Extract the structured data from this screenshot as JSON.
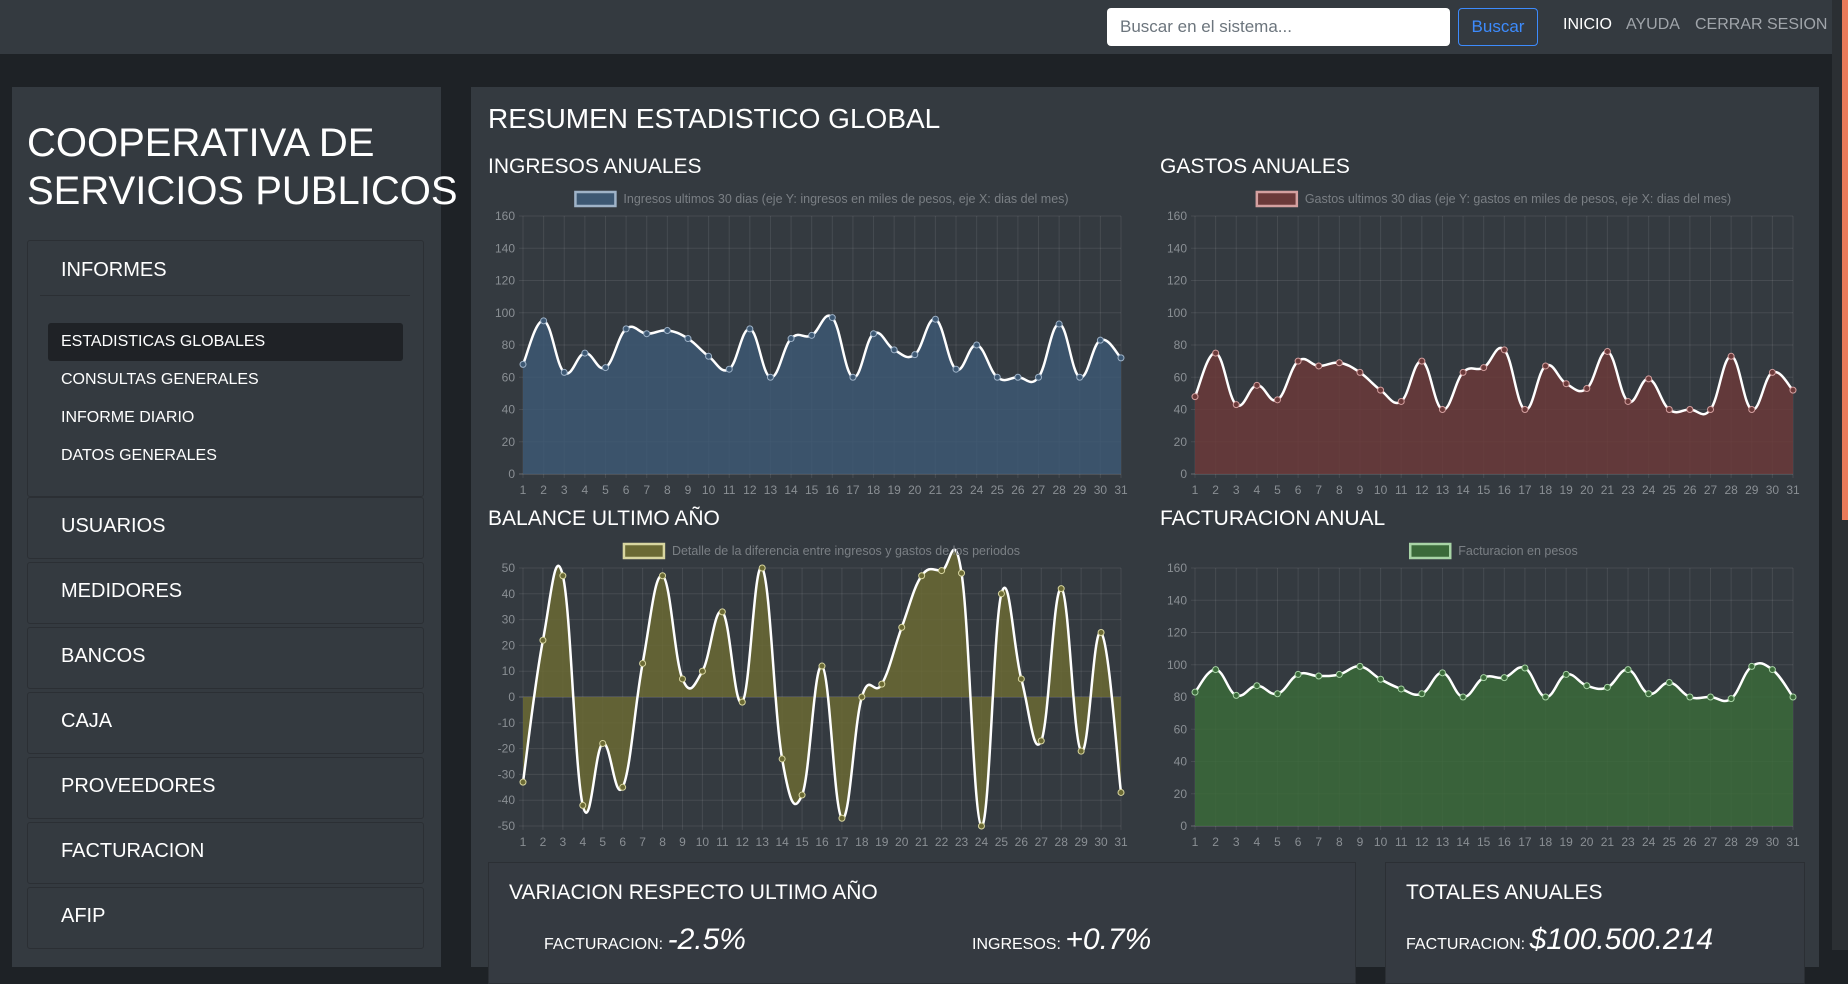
{
  "nav": {
    "search_placeholder": "Buscar en el sistema...",
    "search_button": "Buscar",
    "links": [
      "INICIO",
      "AYUDA",
      "CERRAR SESION"
    ]
  },
  "sidebar": {
    "title_lines": [
      "COOPERATIVA DE",
      "SERVICIOS PUBLICOS"
    ],
    "sections": [
      {
        "label": "INFORMES",
        "items": [
          "ESTADISTICAS GLOBALES",
          "CONSULTAS GENERALES",
          "INFORME DIARIO",
          "DATOS GENERALES"
        ]
      },
      {
        "label": "USUARIOS"
      },
      {
        "label": "MEDIDORES"
      },
      {
        "label": "BANCOS"
      },
      {
        "label": "CAJA"
      },
      {
        "label": "PROVEEDORES"
      },
      {
        "label": "FACTURACION"
      },
      {
        "label": "AFIP"
      }
    ]
  },
  "main": {
    "title": "RESUMEN ESTADISTICO GLOBAL",
    "variation": {
      "title": "VARIACION RESPECTO ULTIMO AÑO",
      "items": [
        {
          "label": "FACTURACION:",
          "value": "-2.5%"
        },
        {
          "label": "INGRESOS:",
          "value": "+0.7%"
        }
      ]
    },
    "totals": {
      "title": "TOTALES ANUALES",
      "items": [
        {
          "label": "FACTURACION:",
          "value": "$100.500.214"
        }
      ]
    }
  },
  "chart_data": [
    {
      "type": "line",
      "title": "INGRESOS ANUALES",
      "categories": [
        "1",
        "2",
        "3",
        "4",
        "5",
        "6",
        "7",
        "8",
        "9",
        "10",
        "11",
        "12",
        "13",
        "14",
        "15",
        "16",
        "17",
        "18",
        "19",
        "20",
        "21",
        "23",
        "24",
        "25",
        "26",
        "27",
        "28",
        "29",
        "30",
        "31"
      ],
      "series": [
        {
          "name": "Ingresos ultimos 30 dias (eje Y: ingresos en miles de pesos, eje X: dias del mes)",
          "color": "#3d5873",
          "border_color": "#9fb3c8",
          "values": [
            68,
            95,
            63,
            75,
            66,
            90,
            87,
            89,
            84,
            73,
            65,
            90,
            60,
            84,
            86,
            97,
            60,
            87,
            77,
            74,
            96,
            65,
            80,
            60,
            60,
            60,
            93,
            60,
            83,
            72
          ]
        }
      ],
      "ylim": [
        0,
        160
      ],
      "yticks": [
        0,
        20,
        40,
        60,
        80,
        100,
        120,
        140,
        160
      ],
      "grid": true
    },
    {
      "type": "line",
      "title": "GASTOS ANUALES",
      "categories": [
        "1",
        "2",
        "3",
        "4",
        "5",
        "6",
        "7",
        "8",
        "9",
        "10",
        "11",
        "12",
        "13",
        "14",
        "15",
        "16",
        "17",
        "18",
        "19",
        "20",
        "21",
        "23",
        "24",
        "25",
        "26",
        "27",
        "28",
        "29",
        "30",
        "31"
      ],
      "series": [
        {
          "name": "Gastos ultimos 30 dias (eje Y: gastos en miles de pesos, eje X: dias del mes)",
          "color": "#6b3a3a",
          "border_color": "#d4a0a0",
          "values": [
            48,
            75,
            43,
            55,
            46,
            70,
            67,
            69,
            63,
            52,
            45,
            70,
            40,
            63,
            66,
            77,
            40,
            67,
            56,
            53,
            76,
            45,
            59,
            40,
            40,
            40,
            73,
            40,
            63,
            52
          ]
        }
      ],
      "ylim": [
        0,
        160
      ],
      "yticks": [
        0,
        20,
        40,
        60,
        80,
        100,
        120,
        140,
        160
      ],
      "grid": true
    },
    {
      "type": "line",
      "title": "BALANCE ULTIMO AÑO",
      "categories": [
        "1",
        "2",
        "3",
        "4",
        "5",
        "6",
        "7",
        "8",
        "9",
        "10",
        "11",
        "12",
        "13",
        "14",
        "15",
        "16",
        "17",
        "18",
        "19",
        "20",
        "21",
        "22",
        "23",
        "24",
        "25",
        "26",
        "27",
        "28",
        "29",
        "30",
        "31"
      ],
      "series": [
        {
          "name": "Detalle de la diferencia entre ingresos y gastos de los periodos",
          "color": "#6b6a34",
          "border_color": "#d8d6a0",
          "values": [
            -33,
            22,
            47,
            -42,
            -18,
            -35,
            13,
            47,
            7,
            10,
            33,
            -2,
            50,
            -24,
            -38,
            12,
            -47,
            0,
            5,
            27,
            47,
            49,
            48,
            -50,
            40,
            7,
            -17,
            42,
            -21,
            25,
            -37
          ]
        }
      ],
      "ylim": [
        -50,
        50
      ],
      "yticks": [
        -50,
        -40,
        -30,
        -20,
        -10,
        0,
        10,
        20,
        30,
        40,
        50
      ],
      "grid": true
    },
    {
      "type": "line",
      "title": "FACTURACION ANUAL",
      "categories": [
        "1",
        "2",
        "3",
        "4",
        "5",
        "6",
        "7",
        "8",
        "9",
        "10",
        "11",
        "12",
        "13",
        "14",
        "15",
        "16",
        "17",
        "18",
        "19",
        "20",
        "21",
        "23",
        "24",
        "25",
        "26",
        "27",
        "28",
        "29",
        "30",
        "31"
      ],
      "series": [
        {
          "name": "Facturacion en pesos",
          "color": "#3b6a3a",
          "border_color": "#a8d4a6",
          "values": [
            83,
            97,
            81,
            87,
            82,
            94,
            93,
            94,
            99,
            91,
            85,
            82,
            95,
            80,
            92,
            92,
            98,
            80,
            94,
            87,
            86,
            97,
            82,
            89,
            80,
            80,
            79,
            99,
            97,
            80
          ]
        }
      ],
      "ylim": [
        0,
        160
      ],
      "yticks": [
        0,
        20,
        40,
        60,
        80,
        100,
        120,
        140,
        160
      ],
      "grid": true
    }
  ]
}
